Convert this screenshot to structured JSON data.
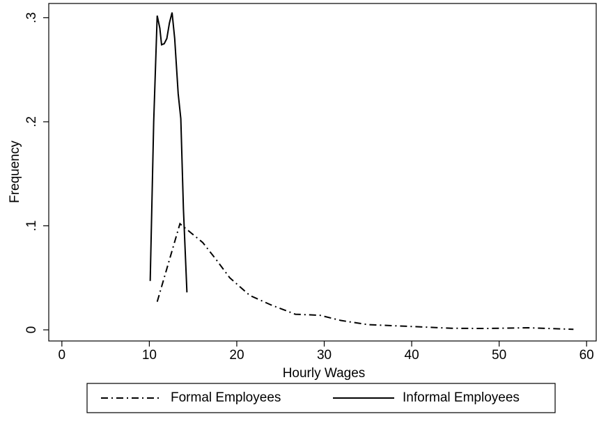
{
  "chart_data": {
    "type": "line",
    "x_label": "Hourly Wages",
    "y_label": "Frequency",
    "xlim": [
      -1.5,
      61.1
    ],
    "ylim": [
      -0.0107,
      0.3137
    ],
    "xticks": [
      0,
      10,
      20,
      30,
      40,
      50,
      60
    ],
    "yticks": [
      {
        "value": 0,
        "label": "0"
      },
      {
        "value": 0.1,
        "label": ".1"
      },
      {
        "value": 0.2,
        "label": ".2"
      },
      {
        "value": 0.3,
        "label": ".3"
      }
    ],
    "legend": "bottom",
    "series": [
      {
        "name": "Formal Employees",
        "color": "#000000",
        "dash": "dashdot",
        "x": [
          10.9,
          13.5,
          14.8,
          16.1,
          17.6,
          19.2,
          21.5,
          23.9,
          26.7,
          29.5,
          31.9,
          35,
          40.6,
          44.6,
          48.6,
          53.3,
          58.5
        ],
        "values": [
          0.027,
          0.102,
          0.093,
          0.084,
          0.068,
          0.05,
          0.033,
          0.024,
          0.015,
          0.014,
          0.009,
          0.005,
          0.003,
          0.0015,
          0.0013,
          0.002,
          0.0005
        ]
      },
      {
        "name": "Informal Employees",
        "color": "#000000",
        "dash": "solid",
        "x": [
          10.1,
          10.5,
          10.9,
          11.2,
          11.4,
          11.7,
          12.0,
          12.3,
          12.6,
          12.9,
          13.3,
          13.6,
          13.9,
          14.3
        ],
        "values": [
          0.047,
          0.2,
          0.302,
          0.29,
          0.274,
          0.275,
          0.28,
          0.295,
          0.305,
          0.28,
          0.227,
          0.203,
          0.116,
          0.036
        ]
      }
    ]
  }
}
